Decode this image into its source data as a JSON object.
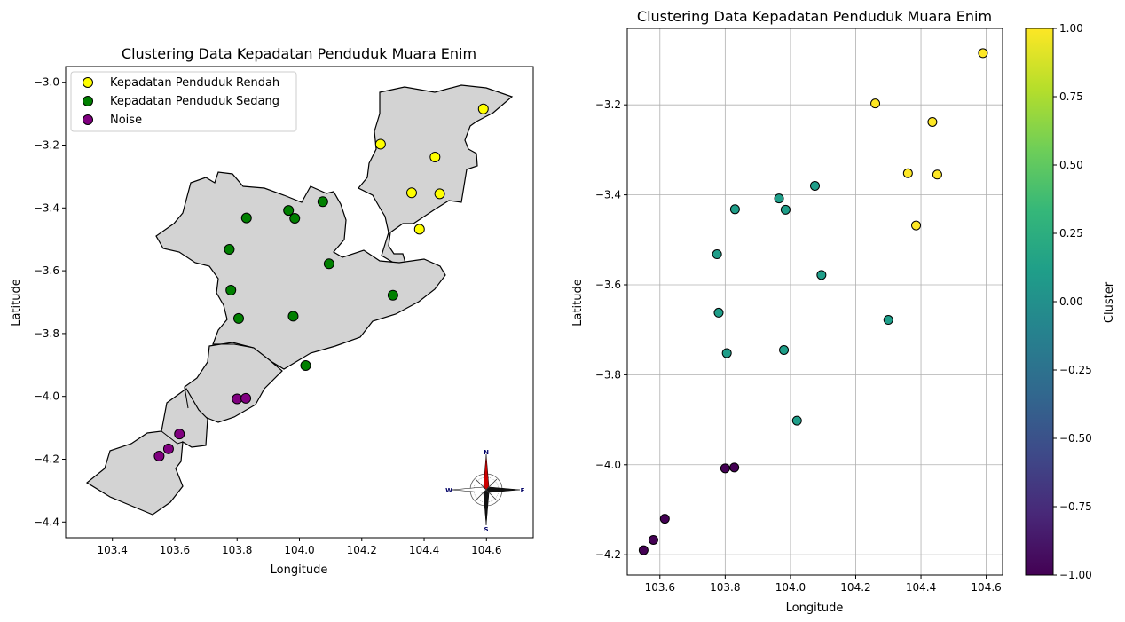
{
  "chart_data": [
    {
      "type": "scatter",
      "title": "Clustering Data Kepadatan Penduduk Muara Enim",
      "xlabel": "Longitude",
      "ylabel": "Latitude",
      "xlim": [
        103.25,
        104.75
      ],
      "ylim": [
        -4.45,
        -2.95
      ],
      "xticks": [
        "103.4",
        "103.6",
        "103.8",
        "104.0",
        "104.2",
        "104.4",
        "104.6"
      ],
      "yticks": [
        "−3.0",
        "−3.2",
        "−3.4",
        "−3.6",
        "−3.8",
        "−4.0",
        "−4.2",
        "−4.4"
      ],
      "grid": false,
      "legend_position": "top-left",
      "basemap": "Muara Enim regency boundary (grey fill)",
      "compass_labels": [
        "N",
        "E",
        "S",
        "W"
      ],
      "series": [
        {
          "name": "Kepadatan Penduduk Rendah",
          "color": "#ffff00",
          "points": [
            [
              104.59,
              -3.085
            ],
            [
              104.26,
              -3.197
            ],
            [
              104.435,
              -3.238
            ],
            [
              104.36,
              -3.352
            ],
            [
              104.45,
              -3.355
            ],
            [
              104.385,
              -3.468
            ]
          ]
        },
        {
          "name": "Kepadatan Penduduk Sedang",
          "color": "#008000",
          "points": [
            [
              103.83,
              -3.432
            ],
            [
              103.965,
              -3.408
            ],
            [
              103.985,
              -3.433
            ],
            [
              104.075,
              -3.38
            ],
            [
              103.775,
              -3.532
            ],
            [
              104.095,
              -3.578
            ],
            [
              103.78,
              -3.662
            ],
            [
              104.3,
              -3.678
            ],
            [
              103.805,
              -3.752
            ],
            [
              103.98,
              -3.745
            ],
            [
              104.02,
              -3.902
            ]
          ]
        },
        {
          "name": "Noise",
          "color": "#800080",
          "points": [
            [
              103.8,
              -4.008
            ],
            [
              103.828,
              -4.006
            ],
            [
              103.615,
              -4.12
            ],
            [
              103.58,
              -4.167
            ],
            [
              103.55,
              -4.19
            ]
          ]
        }
      ]
    },
    {
      "type": "scatter",
      "title": "Clustering Data Kepadatan Penduduk Muara Enim",
      "xlabel": "Longitude",
      "ylabel": "Latitude",
      "xlim": [
        103.5,
        104.65
      ],
      "ylim": [
        -4.245,
        -3.03
      ],
      "xticks": [
        "103.6",
        "103.8",
        "104.0",
        "104.2",
        "104.4",
        "104.6"
      ],
      "yticks": [
        "−3.2",
        "−3.4",
        "−3.6",
        "−3.8",
        "−4.0",
        "−4.2"
      ],
      "grid": true,
      "colorbar": {
        "label": "Cluster",
        "colormap": "viridis",
        "range": [
          -1.0,
          1.0
        ],
        "ticks": [
          "1.00",
          "0.75",
          "0.50",
          "0.25",
          "0.00",
          "−0.25",
          "−0.50",
          "−0.75",
          "−1.00"
        ],
        "colors": [
          "#440154",
          "#482878",
          "#3e4a89",
          "#31688e",
          "#26828e",
          "#1f9e89",
          "#35b779",
          "#6ece58",
          "#b5de2b",
          "#fde725"
        ]
      },
      "points": [
        {
          "x": 104.59,
          "y": -3.085,
          "cluster": 1
        },
        {
          "x": 104.26,
          "y": -3.197,
          "cluster": 1
        },
        {
          "x": 104.435,
          "y": -3.238,
          "cluster": 1
        },
        {
          "x": 104.36,
          "y": -3.352,
          "cluster": 1
        },
        {
          "x": 104.45,
          "y": -3.355,
          "cluster": 1
        },
        {
          "x": 104.385,
          "y": -3.468,
          "cluster": 1
        },
        {
          "x": 103.83,
          "y": -3.432,
          "cluster": 0
        },
        {
          "x": 103.965,
          "y": -3.408,
          "cluster": 0
        },
        {
          "x": 103.985,
          "y": -3.433,
          "cluster": 0
        },
        {
          "x": 104.075,
          "y": -3.38,
          "cluster": 0
        },
        {
          "x": 103.775,
          "y": -3.532,
          "cluster": 0
        },
        {
          "x": 104.095,
          "y": -3.578,
          "cluster": 0
        },
        {
          "x": 103.78,
          "y": -3.662,
          "cluster": 0
        },
        {
          "x": 104.3,
          "y": -3.678,
          "cluster": 0
        },
        {
          "x": 103.805,
          "y": -3.752,
          "cluster": 0
        },
        {
          "x": 103.98,
          "y": -3.745,
          "cluster": 0
        },
        {
          "x": 104.02,
          "y": -3.902,
          "cluster": 0
        },
        {
          "x": 103.8,
          "y": -4.008,
          "cluster": -1
        },
        {
          "x": 103.828,
          "y": -4.006,
          "cluster": -1
        },
        {
          "x": 103.615,
          "y": -4.12,
          "cluster": -1
        },
        {
          "x": 103.58,
          "y": -4.167,
          "cluster": -1
        },
        {
          "x": 103.55,
          "y": -4.19,
          "cluster": -1
        }
      ]
    }
  ]
}
